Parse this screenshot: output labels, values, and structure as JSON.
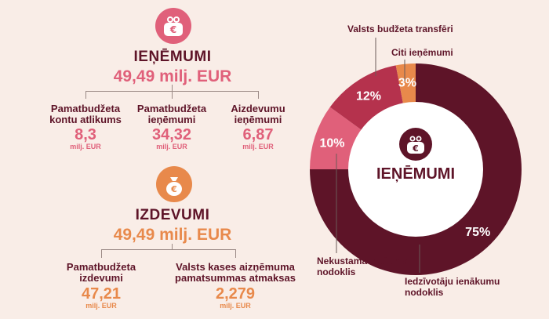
{
  "income": {
    "title": "IEŅĒMUMI",
    "total": "49,49 milj. EUR",
    "items": [
      {
        "label_1": "Pamatbudžeta",
        "label_2": "kontu atlikums",
        "value": "8,3",
        "unit": "milj. EUR"
      },
      {
        "label_1": "Pamatbudžeta",
        "label_2": "ieņēmumi",
        "value": "34,32",
        "unit": "milj. EUR"
      },
      {
        "label_1": "Aizdevumu",
        "label_2": "ieņēmumi",
        "value": "6,87",
        "unit": "milj. EUR"
      }
    ]
  },
  "expenses": {
    "title": "IZDEVUMI",
    "total": "49,49 milj. EUR",
    "items": [
      {
        "label_1": "Pamatbudžeta",
        "label_2": "izdevumi",
        "value": "47,21",
        "unit": "milj. EUR"
      },
      {
        "label_1": "Valsts kases aizņēmuma",
        "label_2": "pamatsummas atmaksas",
        "value": "2,279",
        "unit": "milj. EUR"
      }
    ]
  },
  "icons": {
    "purse": "purse-icon",
    "moneybag": "money-bag-icon",
    "euro": "€"
  },
  "chart_data": {
    "type": "pie",
    "title": "IEŅĒMUMI",
    "donut": true,
    "series": [
      {
        "name": "Iedzīvotāju ienākumu nodoklis",
        "label": "75%",
        "value": 75,
        "color": "#5e1428"
      },
      {
        "name": "Nekustamā īpašuma nodoklis",
        "label": "10%",
        "value": 10,
        "color": "#e0607a"
      },
      {
        "name": "Valsts budžeta transfēri",
        "label": "12%",
        "value": 12,
        "color": "#b5324d"
      },
      {
        "name": "Citi ieņēmumi",
        "label": "3%",
        "value": 3,
        "color": "#e8894b"
      }
    ],
    "callouts": {
      "transfers": "Valsts budžeta transfēri",
      "other": "Citi ieņēmumi",
      "property_1": "Nekustamā īpašuma",
      "property_2": "nodoklis",
      "income_1": "Iedzīvotāju ienākumu",
      "income_2": "nodoklis"
    }
  }
}
